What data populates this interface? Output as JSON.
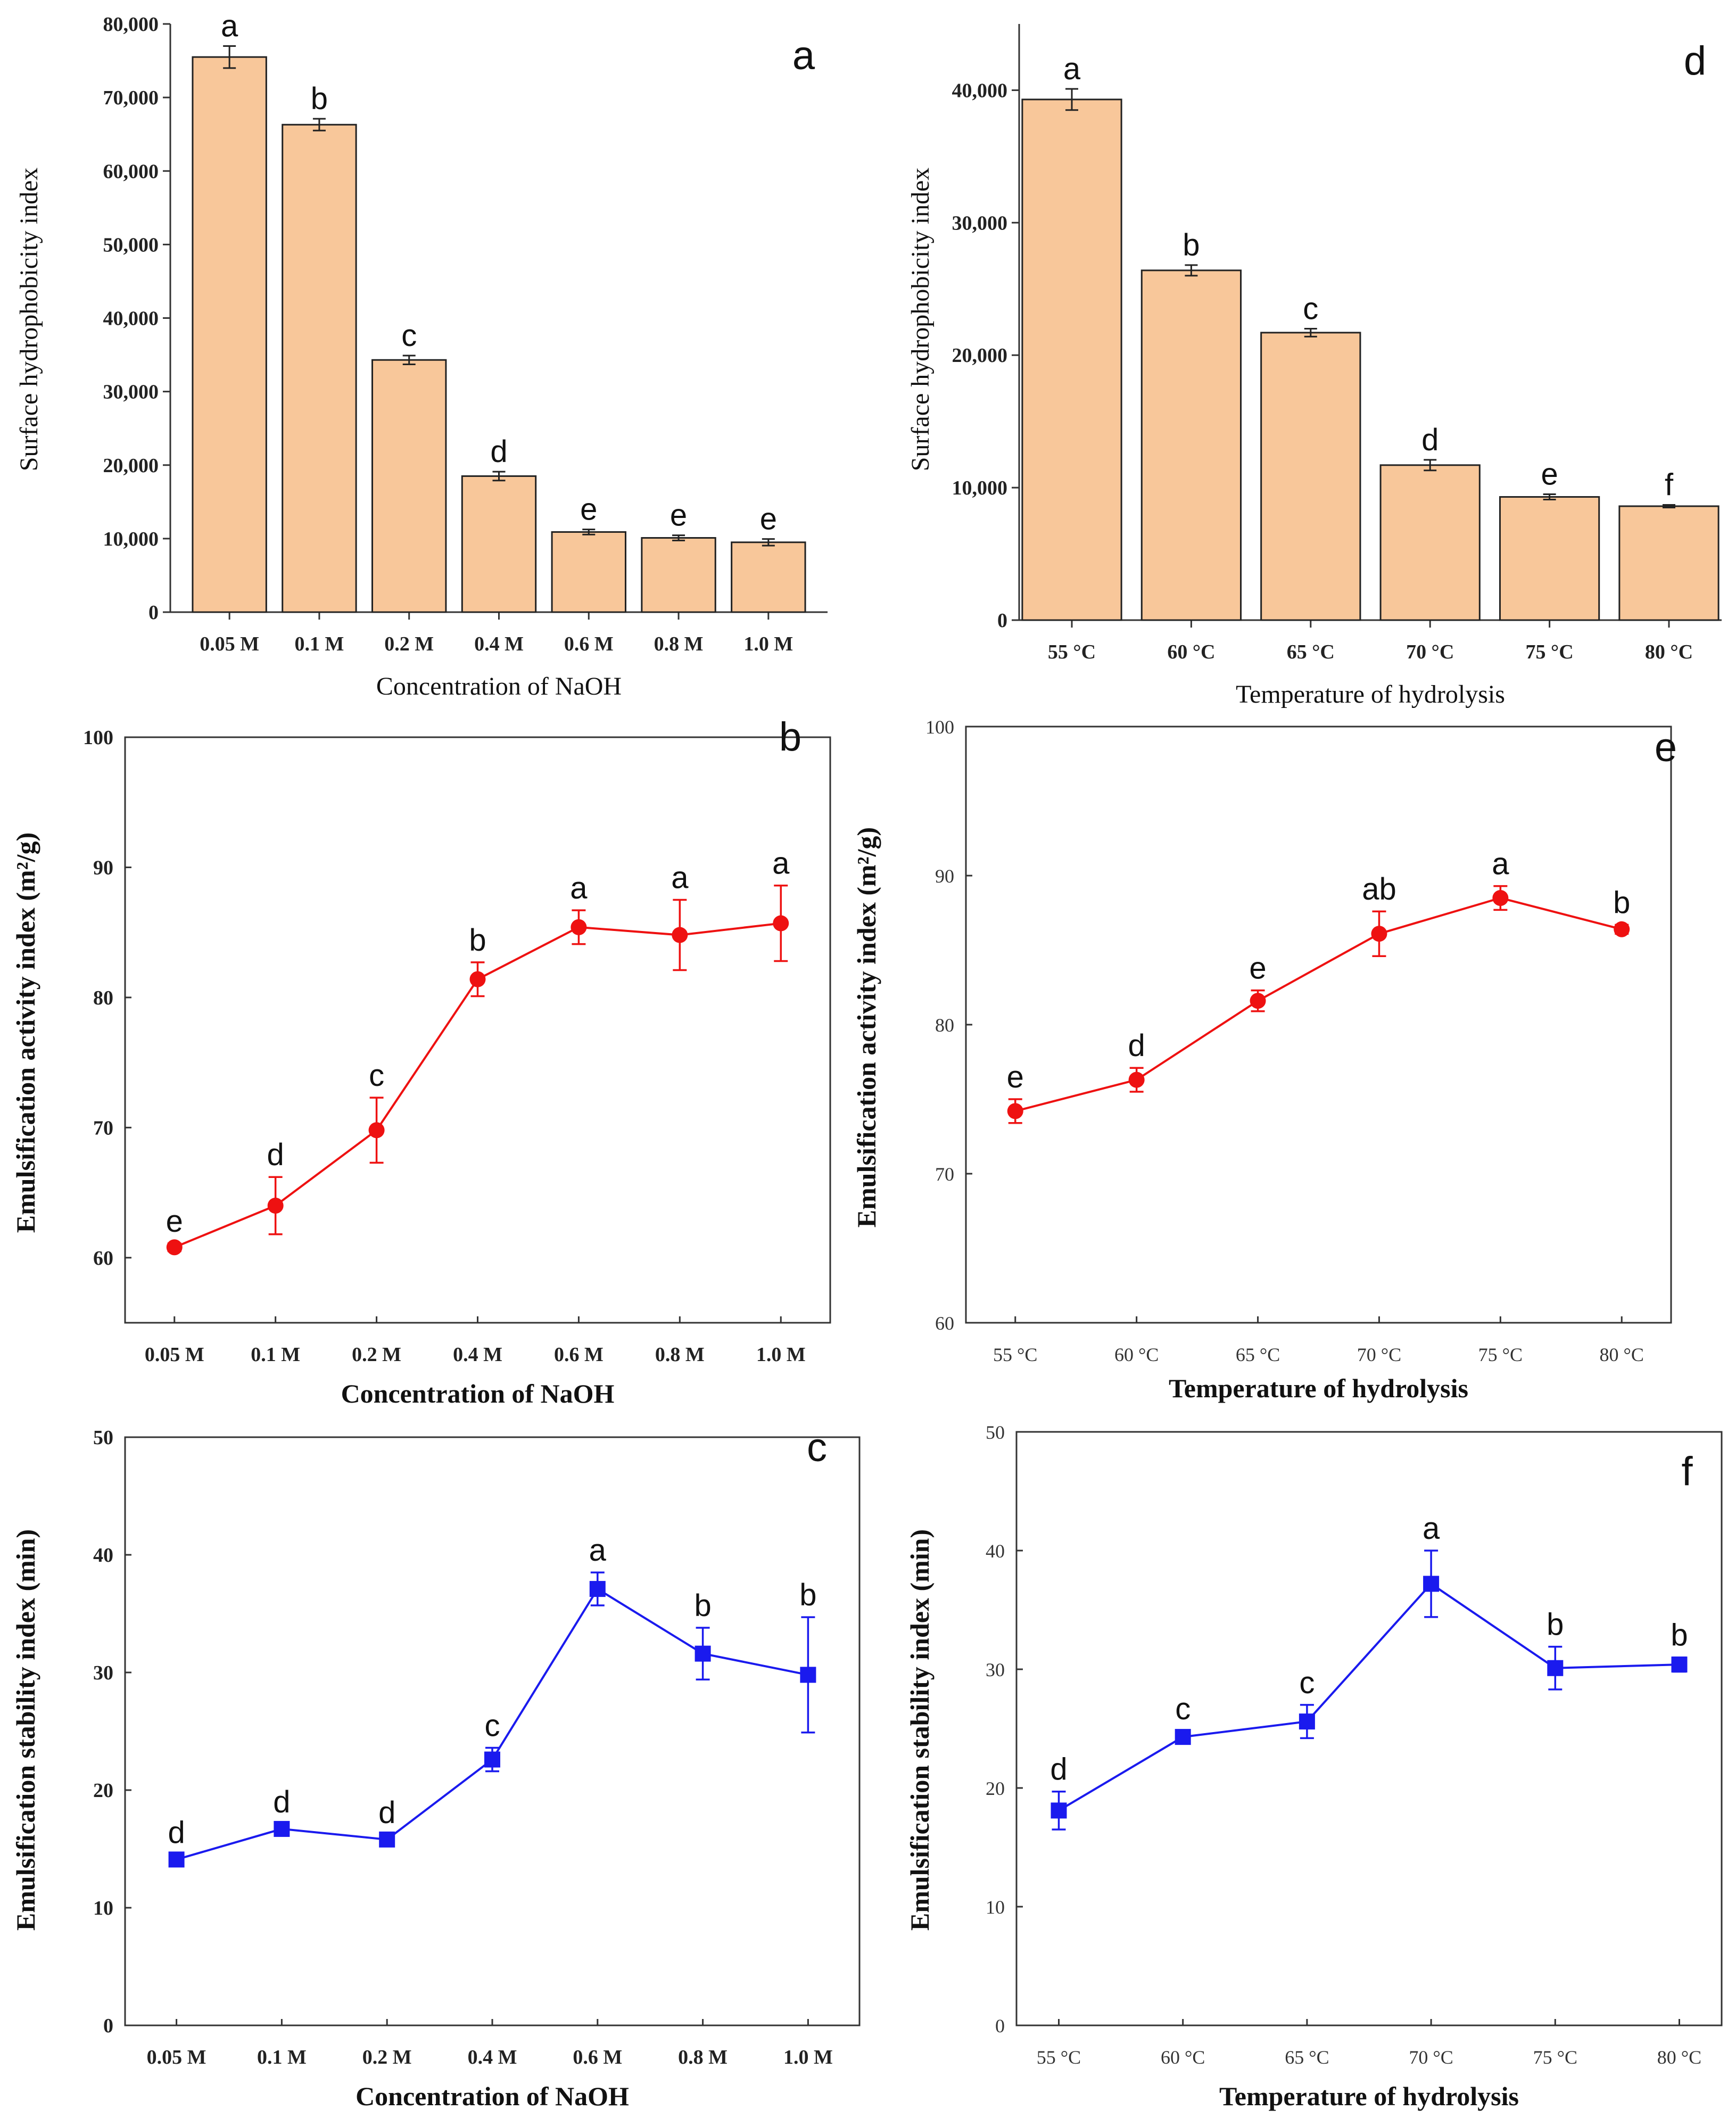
{
  "chart_data": [
    {
      "id": "a",
      "type": "bar",
      "panel_label": "a",
      "categories": [
        "0.05 M",
        "0.1 M",
        "0.2 M",
        "0.4 M",
        "0.6 M",
        "0.8 M",
        "1.0 M"
      ],
      "values": [
        75500,
        66300,
        34300,
        18500,
        10900,
        10100,
        9500
      ],
      "errors": [
        1500,
        800,
        600,
        600,
        350,
        350,
        450
      ],
      "letters": [
        "a",
        "b",
        "c",
        "d",
        "e",
        "e",
        "e"
      ],
      "xlabel": "Concentration of NaOH",
      "ylabel": "Surface hydrophobicity index",
      "ylim": [
        0,
        80000
      ],
      "yticks": [
        0,
        10000,
        20000,
        30000,
        40000,
        50000,
        60000,
        70000,
        80000
      ],
      "ytick_labels": [
        "0",
        "10,000",
        "20,000",
        "30,000",
        "40,000",
        "50,000",
        "60,000",
        "70,000",
        "80,000"
      ],
      "bar_color": "#f8c79a"
    },
    {
      "id": "d",
      "type": "bar",
      "panel_label": "d",
      "categories": [
        "55 °C",
        "60 °C",
        "65 °C",
        "70 °C",
        "75 °C",
        "80 °C"
      ],
      "values": [
        39300,
        26400,
        21700,
        11700,
        9300,
        8600
      ],
      "errors": [
        800,
        400,
        300,
        400,
        200,
        100
      ],
      "letters": [
        "a",
        "b",
        "c",
        "d",
        "e",
        "f"
      ],
      "xlabel": "Temperature of hydrolysis",
      "ylabel": "Surface hydrophobicity index",
      "ylim": [
        0,
        45000
      ],
      "yticks": [
        0,
        10000,
        20000,
        30000,
        40000
      ],
      "ytick_labels": [
        "0",
        "10,000",
        "20,000",
        "30,000",
        "40,000"
      ],
      "bar_color": "#f8c79a"
    },
    {
      "id": "b",
      "type": "line",
      "panel_label": "b",
      "categories": [
        "0.05 M",
        "0.1 M",
        "0.2 M",
        "0.4 M",
        "0.6 M",
        "0.8 M",
        "1.0 M"
      ],
      "values": [
        60.8,
        64.0,
        69.8,
        81.4,
        85.4,
        84.8,
        85.7
      ],
      "errors": [
        0.3,
        2.2,
        2.5,
        1.3,
        1.3,
        2.7,
        2.9
      ],
      "letters": [
        "e",
        "d",
        "c",
        "b",
        "a",
        "a",
        "a"
      ],
      "xlabel": "Concentration of NaOH",
      "ylabel": "Emulsification activity index (m²/g)",
      "ylim": [
        55,
        100
      ],
      "yticks": [
        60,
        70,
        80,
        90,
        100
      ],
      "ytick_labels": [
        "60",
        "70",
        "80",
        "90",
        "100"
      ],
      "color": "#ee1111",
      "marker": "circle"
    },
    {
      "id": "e",
      "type": "line",
      "panel_label": "e",
      "categories": [
        "55 °C",
        "60 °C",
        "65 °C",
        "70 °C",
        "75 °C",
        "80 °C"
      ],
      "values": [
        74.2,
        76.3,
        81.6,
        86.1,
        88.5,
        86.4
      ],
      "errors": [
        0.8,
        0.8,
        0.7,
        1.5,
        0.8,
        0.3
      ],
      "letters": [
        "e",
        "d",
        "e",
        "ab",
        "a",
        "b"
      ],
      "xlabel": "Temperature of hydrolysis",
      "ylabel": "Emulsification activity index (m²/g)",
      "ylim": [
        60,
        100
      ],
      "yticks": [
        60,
        70,
        80,
        90,
        100
      ],
      "ytick_labels": [
        "60",
        "70",
        "80",
        "90",
        "100"
      ],
      "color": "#ee1111",
      "marker": "circle"
    },
    {
      "id": "c",
      "type": "line",
      "panel_label": "c",
      "categories": [
        "0.05 M",
        "0.1 M",
        "0.2 M",
        "0.4 M",
        "0.6 M",
        "0.8 M",
        "1.0 M"
      ],
      "values": [
        14.1,
        16.7,
        15.8,
        22.6,
        37.1,
        31.6,
        29.8
      ],
      "errors": [
        0.4,
        0.4,
        0.4,
        1.0,
        1.4,
        2.2,
        4.9
      ],
      "letters": [
        "d",
        "d",
        "d",
        "c",
        "a",
        "b",
        "b"
      ],
      "xlabel": "Concentration of NaOH",
      "ylabel": "Emulsification stability index (min)",
      "ylim": [
        0,
        50
      ],
      "yticks": [
        0,
        10,
        20,
        30,
        40,
        50
      ],
      "ytick_labels": [
        "0",
        "10",
        "20",
        "30",
        "40",
        "50"
      ],
      "color": "#1a1aee",
      "marker": "square"
    },
    {
      "id": "f",
      "type": "line",
      "panel_label": "f",
      "categories": [
        "55 °C",
        "60 °C",
        "65 °C",
        "70 °C",
        "75 °C",
        "80 °C"
      ],
      "values": [
        18.1,
        24.3,
        25.6,
        37.2,
        30.1,
        30.4
      ],
      "errors": [
        1.6,
        0.5,
        1.4,
        2.8,
        1.8,
        0.6
      ],
      "letters": [
        "d",
        "c",
        "c",
        "a",
        "b",
        "b"
      ],
      "xlabel": "Temperature of hydrolysis",
      "ylabel": "Emulsification stability index (min)",
      "ylim": [
        0,
        50
      ],
      "yticks": [
        0,
        10,
        20,
        30,
        40,
        50
      ],
      "ytick_labels": [
        "0",
        "10",
        "20",
        "30",
        "40",
        "50"
      ],
      "color": "#1a1aee",
      "marker": "square"
    }
  ]
}
